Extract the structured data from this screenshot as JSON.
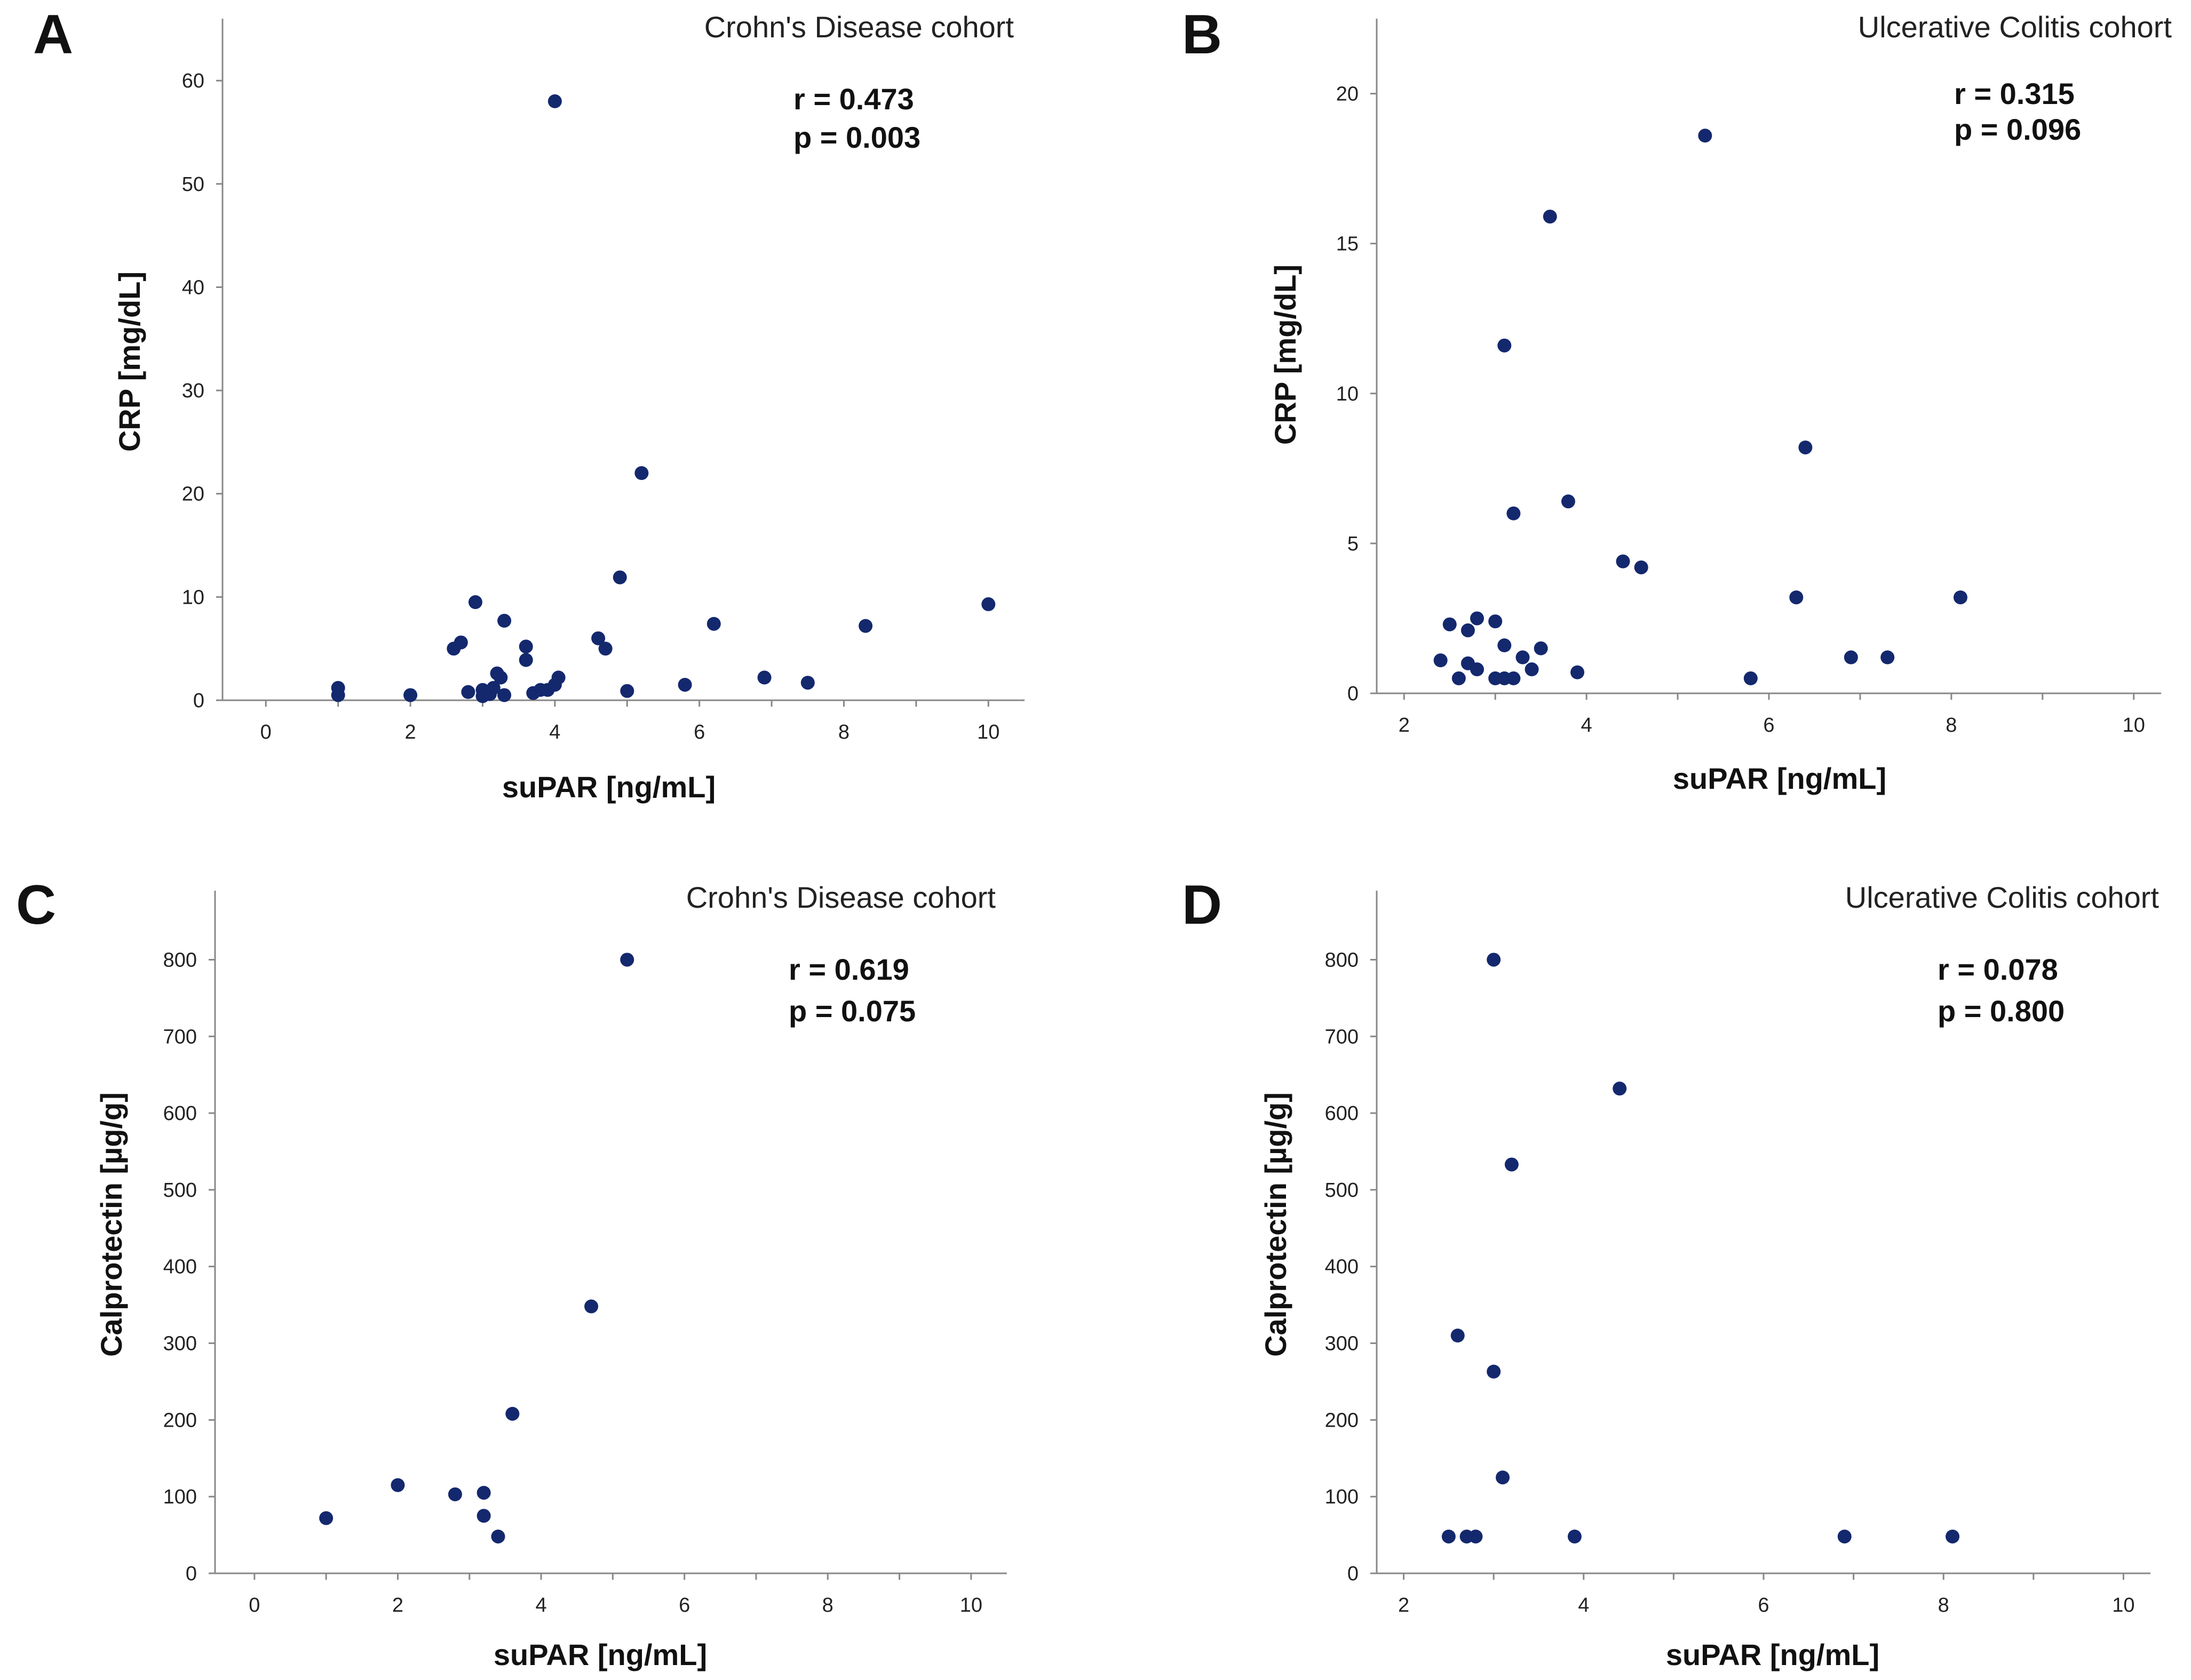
{
  "colors": {
    "point": "#14286e",
    "axis": "#888888"
  },
  "chart_data": [
    {
      "type": "scatter",
      "panel_letter": "A",
      "title": "Crohn's Disease cohort",
      "stat_r": "r = 0.473",
      "stat_p": "p = 0.003",
      "xlabel": "suPAR [ng/mL]",
      "ylabel": "CRP [mg/dL]",
      "xlim": [
        -0.6,
        10.5
      ],
      "ylim": [
        0,
        66
      ],
      "xticks": [
        0,
        2,
        4,
        6,
        8,
        10
      ],
      "xtick_labels": [
        "0",
        "2",
        "4",
        "6",
        "8",
        "10"
      ],
      "yticks": [
        0,
        10,
        20,
        30,
        40,
        50,
        60
      ],
      "ytick_labels": [
        "0",
        "10",
        "20",
        "30",
        "40",
        "50",
        "60"
      ],
      "x": [
        1.0,
        1.0,
        2.0,
        2.6,
        2.7,
        2.8,
        2.9,
        3.0,
        3.0,
        3.05,
        3.1,
        3.15,
        3.2,
        3.25,
        3.3,
        3.3,
        3.6,
        3.6,
        3.7,
        3.8,
        3.9,
        4.0,
        4.05,
        4.0,
        4.6,
        4.7,
        4.9,
        5.0,
        5.2,
        5.8,
        6.2,
        6.9,
        7.5,
        8.3,
        10.0
      ],
      "y": [
        1.2,
        0.5,
        0.5,
        5.0,
        5.6,
        0.8,
        9.5,
        1.0,
        0.4,
        0.8,
        0.6,
        1.2,
        2.6,
        2.2,
        0.5,
        7.7,
        5.2,
        3.9,
        0.7,
        1.0,
        1.0,
        1.5,
        2.2,
        58.0,
        6.0,
        5.0,
        11.9,
        0.9,
        22.0,
        1.5,
        7.4,
        2.2,
        1.7,
        7.2,
        9.3
      ]
    },
    {
      "type": "scatter",
      "panel_letter": "B",
      "title": "Ulcerative Colitis cohort",
      "stat_r": "r = 0.315",
      "stat_p": "p = 0.096",
      "xlabel": "suPAR [ng/mL]",
      "ylabel": "CRP [mg/dL]",
      "xlim": [
        1.7,
        10.3
      ],
      "ylim": [
        0,
        22.5
      ],
      "xticks": [
        2,
        4,
        6,
        8,
        10
      ],
      "xtick_labels": [
        "2",
        "4",
        "6",
        "8",
        "10"
      ],
      "yticks": [
        0,
        5,
        10,
        15,
        20
      ],
      "ytick_labels": [
        "0",
        "5",
        "10",
        "15",
        "20"
      ],
      "x": [
        2.4,
        2.5,
        2.6,
        2.7,
        2.7,
        2.8,
        2.8,
        3.0,
        3.0,
        3.1,
        3.1,
        3.1,
        3.2,
        3.2,
        3.3,
        3.4,
        3.5,
        3.6,
        3.8,
        3.9,
        4.4,
        4.6,
        5.3,
        5.8,
        6.3,
        6.4,
        6.9,
        7.3,
        8.1
      ],
      "y": [
        1.1,
        2.3,
        0.5,
        2.1,
        1.0,
        2.5,
        0.8,
        2.4,
        0.5,
        1.6,
        0.5,
        11.6,
        0.5,
        6.0,
        1.2,
        0.8,
        1.5,
        15.9,
        6.4,
        0.7,
        4.4,
        4.2,
        18.6,
        0.5,
        3.2,
        8.2,
        1.2,
        1.2,
        3.2
      ]
    },
    {
      "type": "scatter",
      "panel_letter": "C",
      "title": "Crohn's Disease cohort",
      "stat_r": "r = 0.619",
      "stat_p": "p = 0.075",
      "xlabel": "suPAR [ng/mL]",
      "ylabel": "Calprotectin [µg/g]",
      "xlim": [
        -0.55,
        10.5
      ],
      "ylim": [
        0,
        890
      ],
      "xticks": [
        0,
        2,
        4,
        6,
        8,
        10
      ],
      "xtick_labels": [
        "0",
        "2",
        "4",
        "6",
        "8",
        "10"
      ],
      "yticks": [
        0,
        100,
        200,
        300,
        400,
        500,
        600,
        700,
        800
      ],
      "ytick_labels": [
        "0",
        "100",
        "200",
        "300",
        "400",
        "500",
        "600",
        "700",
        "800"
      ],
      "x": [
        1.0,
        2.0,
        2.8,
        3.2,
        3.2,
        3.4,
        3.6,
        4.7,
        5.2
      ],
      "y": [
        72,
        115,
        103,
        105,
        75,
        48,
        208,
        348,
        800
      ]
    },
    {
      "type": "scatter",
      "panel_letter": "D",
      "title": "Ulcerative Colitis cohort",
      "stat_r": "r = 0.078",
      "stat_p": "p = 0.800",
      "xlabel": "suPAR [ng/mL]",
      "ylabel": "Calprotectin [µg/g]",
      "xlim": [
        1.7,
        10.3
      ],
      "ylim": [
        0,
        890
      ],
      "xticks": [
        2,
        4,
        6,
        8,
        10
      ],
      "xtick_labels": [
        "2",
        "4",
        "6",
        "8",
        "10"
      ],
      "yticks": [
        0,
        100,
        200,
        300,
        400,
        500,
        600,
        700,
        800
      ],
      "ytick_labels": [
        "0",
        "100",
        "200",
        "300",
        "400",
        "500",
        "600",
        "700",
        "800"
      ],
      "x": [
        2.5,
        2.6,
        2.7,
        2.8,
        3.0,
        3.0,
        3.1,
        3.2,
        3.9,
        4.4,
        6.9,
        8.1
      ],
      "y": [
        48,
        310,
        48,
        48,
        800,
        263,
        125,
        533,
        48,
        632,
        48,
        48
      ]
    }
  ]
}
